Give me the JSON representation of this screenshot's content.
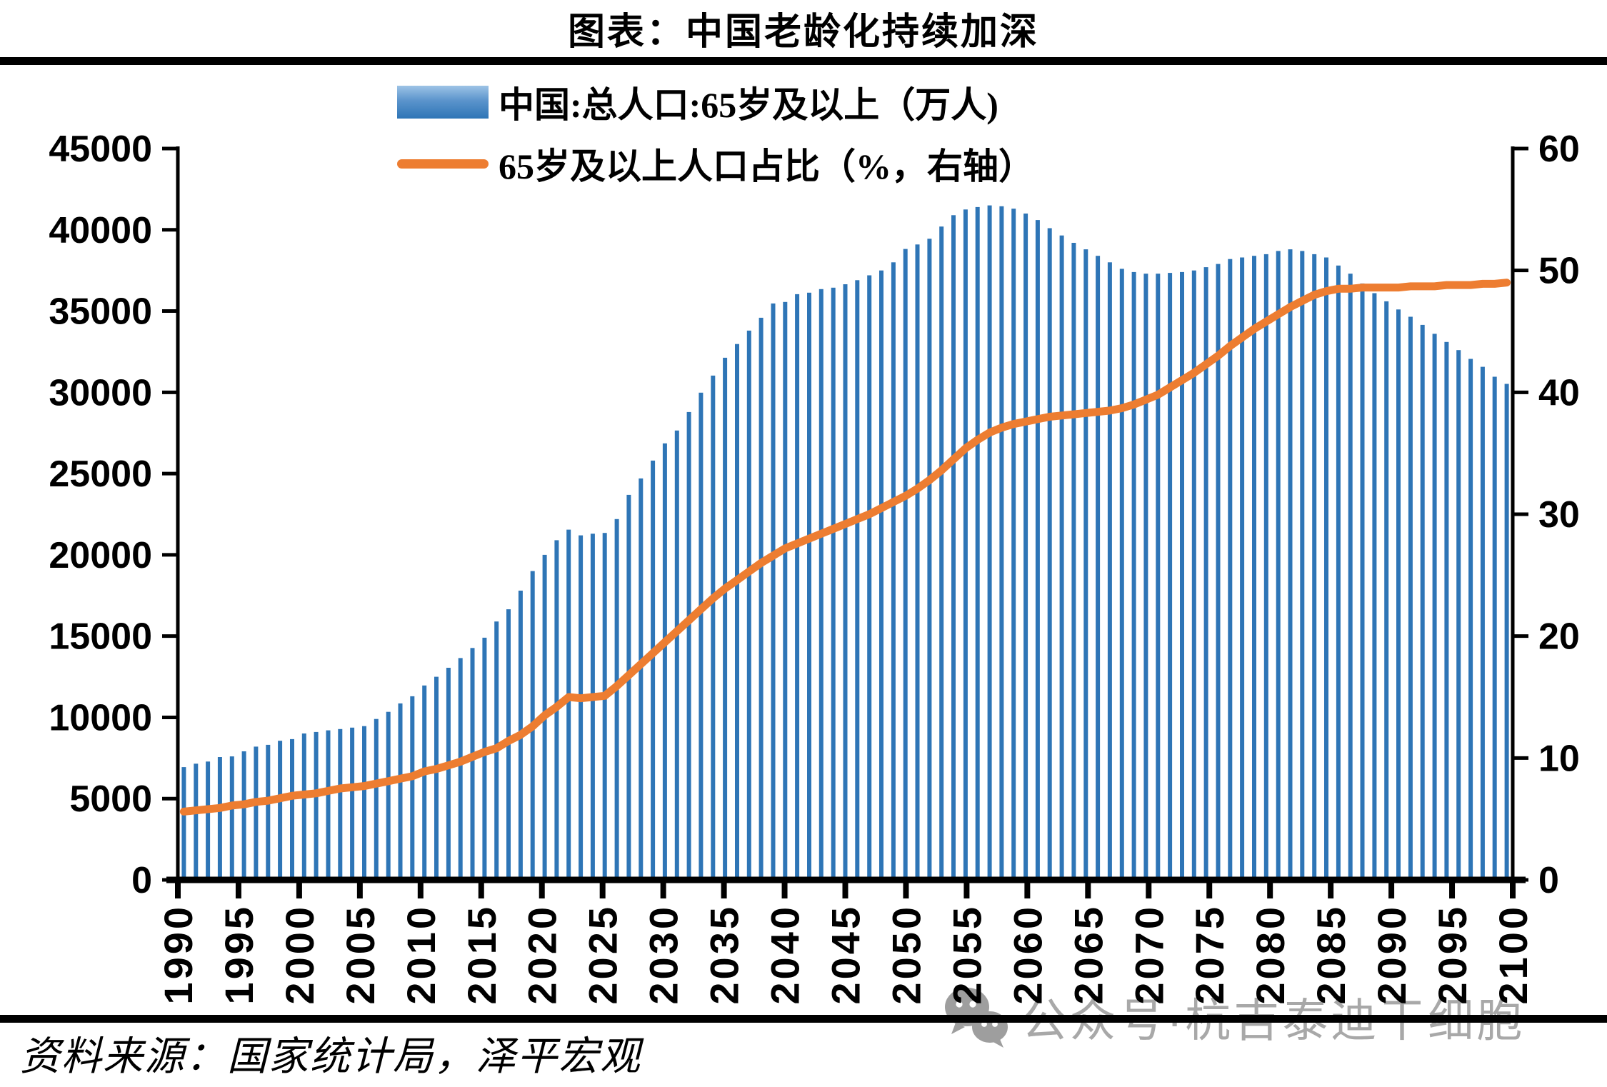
{
  "page": {
    "title": "图表：中国老龄化持续加深",
    "source_note": "资料来源：国家统计局，泽平宏观",
    "watermark_text": "公众号·杭吉泰迪干细胞"
  },
  "legend": [
    {
      "label": "中国:总人口:65岁及以上（万人)",
      "swatch": "blue-gradient-bar"
    },
    {
      "label": "65岁及以上人口占比（%，右轴）",
      "swatch": "orange-line"
    }
  ],
  "colors": {
    "bar": "#2E75B6",
    "bar_gradient_light": "#9DC3E6",
    "line": "#ED7D31",
    "text": "#000000",
    "watermark": "#A8A8A8"
  },
  "chart_data": {
    "type": "bar+line",
    "title": "图表：中国老龄化持续加深",
    "x_start_year": 1990,
    "x_end_year": 2100,
    "x_tick_labels": [
      "1990",
      "1995",
      "2000",
      "2005",
      "2010",
      "2015",
      "2020",
      "2025",
      "2030",
      "2035",
      "2040",
      "2045",
      "2050",
      "2055",
      "2060",
      "2065",
      "2070",
      "2075",
      "2080",
      "2085",
      "2090",
      "2095",
      "2100"
    ],
    "grid": false,
    "legend_position": "top-center",
    "left_axis": {
      "range": [
        0,
        45000
      ],
      "ticks": [
        0,
        5000,
        10000,
        15000,
        20000,
        25000,
        30000,
        35000,
        40000,
        45000
      ]
    },
    "right_axis": {
      "range": [
        0,
        60
      ],
      "ticks": [
        0,
        10,
        20,
        30,
        40,
        50,
        60
      ]
    },
    "series": [
      {
        "name": "中国:总人口:65岁及以上（万人)",
        "type": "bar",
        "axis": "left",
        "values": [
          6940,
          7150,
          7280,
          7560,
          7600,
          7910,
          8200,
          8310,
          8560,
          8660,
          9010,
          9100,
          9200,
          9280,
          9370,
          9460,
          9900,
          10340,
          10860,
          11300,
          11960,
          12500,
          13050,
          13650,
          14270,
          14900,
          15900,
          16650,
          17800,
          19000,
          20000,
          20900,
          21550,
          21200,
          21300,
          21350,
          22200,
          23690,
          24700,
          25800,
          26860,
          27650,
          28790,
          29980,
          31030,
          32130,
          32970,
          33800,
          34590,
          35470,
          35560,
          36040,
          36130,
          36350,
          36440,
          36650,
          36900,
          37200,
          37500,
          38000,
          38820,
          39100,
          39450,
          40200,
          40900,
          41250,
          41400,
          41500,
          41450,
          41300,
          41000,
          40600,
          40100,
          39650,
          39200,
          38800,
          38400,
          38000,
          37600,
          37400,
          37300,
          37300,
          37350,
          37400,
          37500,
          37700,
          37900,
          38200,
          38300,
          38400,
          38500,
          38700,
          38800,
          38700,
          38500,
          38300,
          37800,
          37300,
          36700,
          36100,
          35600,
          35100,
          34650,
          34150,
          33600,
          33100,
          32600,
          32060,
          31570,
          30960,
          30520
        ]
      },
      {
        "name": "65岁及以上人口占比（%，右轴）",
        "type": "line",
        "axis": "right",
        "values": [
          5.6,
          5.7,
          5.8,
          5.9,
          6.1,
          6.2,
          6.4,
          6.5,
          6.7,
          6.9,
          7.0,
          7.1,
          7.3,
          7.5,
          7.6,
          7.7,
          7.9,
          8.1,
          8.3,
          8.5,
          8.9,
          9.1,
          9.4,
          9.7,
          10.1,
          10.5,
          10.8,
          11.4,
          11.9,
          12.6,
          13.5,
          14.2,
          15.0,
          14.9,
          15.0,
          15.1,
          15.9,
          16.8,
          17.7,
          18.6,
          19.5,
          20.4,
          21.3,
          22.2,
          23.1,
          23.9,
          24.6,
          25.3,
          26.0,
          26.6,
          27.2,
          27.6,
          28.0,
          28.4,
          28.8,
          29.2,
          29.6,
          30.0,
          30.5,
          31.0,
          31.5,
          32.1,
          32.8,
          33.6,
          34.5,
          35.4,
          36.1,
          36.7,
          37.1,
          37.4,
          37.6,
          37.8,
          38.0,
          38.1,
          38.2,
          38.3,
          38.4,
          38.5,
          38.7,
          39.0,
          39.4,
          39.8,
          40.4,
          41.0,
          41.6,
          42.3,
          43.0,
          43.8,
          44.5,
          45.2,
          45.8,
          46.4,
          47.0,
          47.5,
          48.0,
          48.3,
          48.5,
          48.5,
          48.6,
          48.6,
          48.6,
          48.6,
          48.7,
          48.7,
          48.7,
          48.8,
          48.8,
          48.8,
          48.9,
          48.9,
          49.0
        ]
      }
    ]
  }
}
